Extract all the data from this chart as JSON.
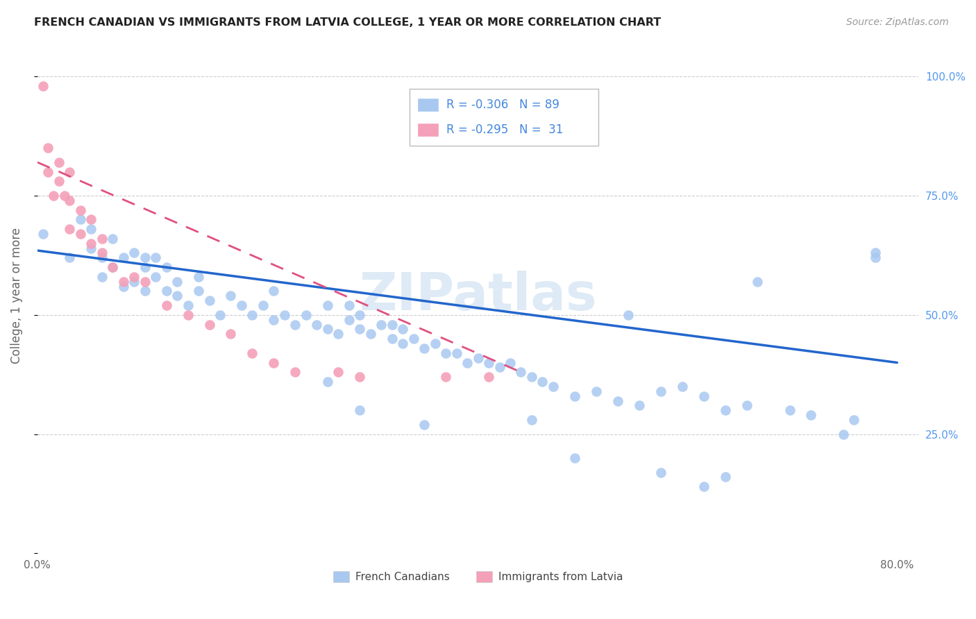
{
  "title": "FRENCH CANADIAN VS IMMIGRANTS FROM LATVIA COLLEGE, 1 YEAR OR MORE CORRELATION CHART",
  "source": "Source: ZipAtlas.com",
  "ylabel": "College, 1 year or more",
  "legend_label_blue": "French Canadians",
  "legend_label_pink": "Immigrants from Latvia",
  "R_blue": -0.306,
  "N_blue": 89,
  "R_pink": -0.295,
  "N_pink": 31,
  "blue_color": "#A8C8F0",
  "pink_color": "#F4A0B8",
  "line_blue": "#2266CC",
  "line_pink": "#E05080",
  "watermark": "ZIPatlas",
  "background_color": "#FFFFFF",
  "xlim": [
    0.0,
    0.82
  ],
  "ylim": [
    0.0,
    1.08
  ],
  "blue_x": [
    0.005,
    0.03,
    0.04,
    0.05,
    0.05,
    0.06,
    0.06,
    0.07,
    0.07,
    0.08,
    0.08,
    0.09,
    0.09,
    0.1,
    0.1,
    0.1,
    0.11,
    0.11,
    0.12,
    0.12,
    0.13,
    0.13,
    0.14,
    0.15,
    0.15,
    0.16,
    0.17,
    0.18,
    0.19,
    0.2,
    0.21,
    0.22,
    0.22,
    0.23,
    0.24,
    0.25,
    0.26,
    0.27,
    0.27,
    0.28,
    0.29,
    0.29,
    0.3,
    0.3,
    0.31,
    0.32,
    0.33,
    0.33,
    0.34,
    0.34,
    0.35,
    0.36,
    0.37,
    0.38,
    0.39,
    0.4,
    0.41,
    0.42,
    0.43,
    0.44,
    0.45,
    0.46,
    0.47,
    0.48,
    0.5,
    0.52,
    0.54,
    0.55,
    0.56,
    0.58,
    0.6,
    0.62,
    0.64,
    0.66,
    0.67,
    0.7,
    0.72,
    0.75,
    0.76,
    0.78,
    0.27,
    0.3,
    0.36,
    0.46,
    0.5,
    0.58,
    0.62,
    0.64,
    0.78
  ],
  "blue_y": [
    0.67,
    0.62,
    0.7,
    0.64,
    0.68,
    0.62,
    0.58,
    0.66,
    0.6,
    0.56,
    0.62,
    0.57,
    0.63,
    0.6,
    0.55,
    0.62,
    0.58,
    0.62,
    0.55,
    0.6,
    0.54,
    0.57,
    0.52,
    0.55,
    0.58,
    0.53,
    0.5,
    0.54,
    0.52,
    0.5,
    0.52,
    0.49,
    0.55,
    0.5,
    0.48,
    0.5,
    0.48,
    0.47,
    0.52,
    0.46,
    0.49,
    0.52,
    0.47,
    0.5,
    0.46,
    0.48,
    0.45,
    0.48,
    0.44,
    0.47,
    0.45,
    0.43,
    0.44,
    0.42,
    0.42,
    0.4,
    0.41,
    0.4,
    0.39,
    0.4,
    0.38,
    0.37,
    0.36,
    0.35,
    0.33,
    0.34,
    0.32,
    0.5,
    0.31,
    0.34,
    0.35,
    0.33,
    0.3,
    0.31,
    0.57,
    0.3,
    0.29,
    0.25,
    0.28,
    0.62,
    0.36,
    0.3,
    0.27,
    0.28,
    0.2,
    0.17,
    0.14,
    0.16,
    0.63
  ],
  "pink_x": [
    0.005,
    0.01,
    0.01,
    0.015,
    0.02,
    0.02,
    0.025,
    0.03,
    0.03,
    0.03,
    0.04,
    0.04,
    0.05,
    0.05,
    0.06,
    0.06,
    0.07,
    0.08,
    0.09,
    0.1,
    0.12,
    0.14,
    0.16,
    0.18,
    0.2,
    0.22,
    0.24,
    0.28,
    0.3,
    0.38,
    0.42
  ],
  "pink_y": [
    0.98,
    0.85,
    0.8,
    0.75,
    0.82,
    0.78,
    0.75,
    0.8,
    0.74,
    0.68,
    0.72,
    0.67,
    0.65,
    0.7,
    0.63,
    0.66,
    0.6,
    0.57,
    0.58,
    0.57,
    0.52,
    0.5,
    0.48,
    0.46,
    0.42,
    0.4,
    0.38,
    0.38,
    0.37,
    0.37,
    0.37
  ],
  "blue_line_x0": 0.0,
  "blue_line_x1": 0.8,
  "blue_line_y0": 0.635,
  "blue_line_y1": 0.4,
  "pink_line_x0": 0.0,
  "pink_line_x1": 0.45,
  "pink_line_y0": 0.82,
  "pink_line_y1": 0.38
}
